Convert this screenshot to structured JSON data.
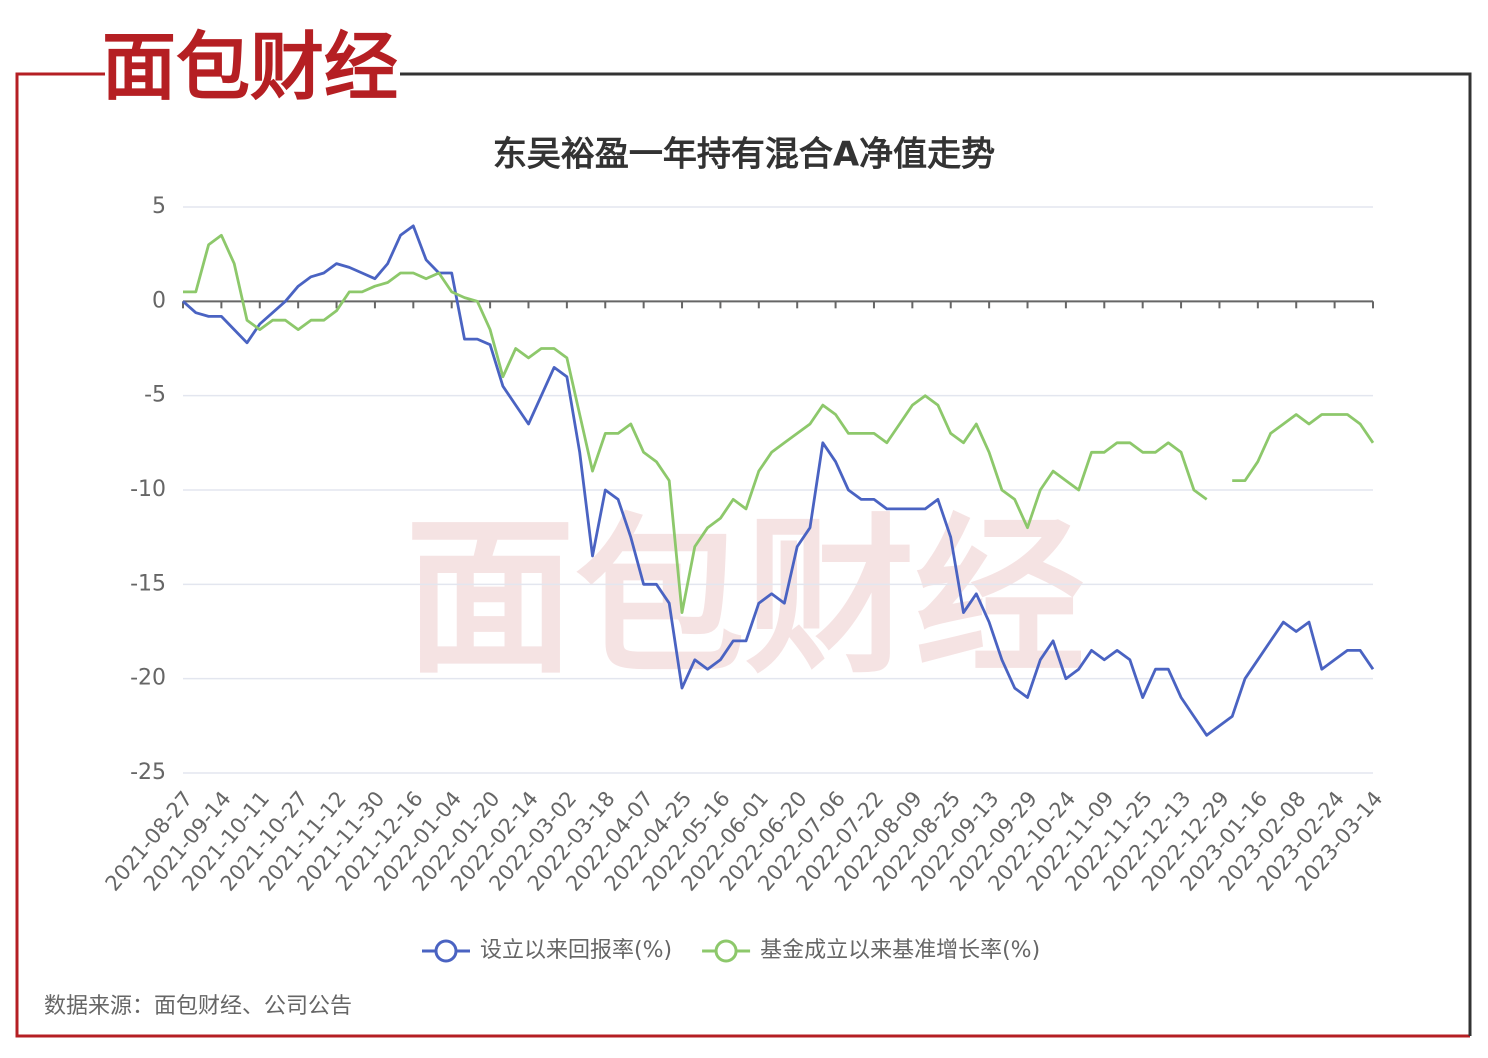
{
  "logo": "面包财经",
  "source": "数据来源：面包财经、公司公告",
  "chart_data": {
    "type": "line",
    "title": "东吴裕盈一年持有混合A净值走势",
    "categories": [
      "2021-08-27",
      null,
      null,
      "2021-09-14",
      null,
      null,
      "2021-10-11",
      null,
      null,
      "2021-10-27",
      null,
      null,
      "2021-11-12",
      null,
      null,
      "2021-11-30",
      null,
      null,
      "2021-12-16",
      null,
      null,
      "2022-01-04",
      null,
      null,
      "2022-01-20",
      null,
      null,
      "2022-02-14",
      null,
      null,
      "2022-03-02",
      null,
      null,
      "2022-03-18",
      null,
      null,
      "2022-04-07",
      null,
      null,
      "2022-04-25",
      null,
      null,
      "2022-05-16",
      null,
      null,
      "2022-06-01",
      null,
      null,
      "2022-06-20",
      null,
      null,
      "2022-07-06",
      null,
      null,
      "2022-07-22",
      null,
      null,
      "2022-08-09",
      null,
      null,
      "2022-08-25",
      null,
      null,
      "2022-09-13",
      null,
      null,
      "2022-09-29",
      null,
      null,
      "2022-10-24",
      null,
      null,
      "2022-11-09",
      null,
      null,
      "2022-11-25",
      null,
      null,
      "2022-12-13",
      null,
      null,
      "2022-12-29",
      null,
      null,
      "2023-01-16",
      null,
      null,
      "2023-02-08",
      null,
      null,
      "2023-02-24",
      null,
      null,
      "2023-03-14"
    ],
    "series": [
      {
        "name": "设立以来回报率(%)",
        "color": "#4a63c2",
        "values": [
          0,
          -0.6,
          -0.8,
          -0.8,
          -1.5,
          -2.2,
          -1.2,
          -0.6,
          0,
          0.8,
          1.3,
          1.5,
          2,
          1.8,
          1.5,
          1.2,
          2,
          3.5,
          4,
          2.2,
          1.5,
          1.5,
          -2,
          -2,
          -2.3,
          -4.5,
          -5.5,
          -6.5,
          -5,
          -3.5,
          -4,
          -8,
          -13.5,
          -10,
          -10.5,
          -12.5,
          -15,
          -15,
          -16,
          -20.5,
          -19,
          -19.5,
          -19,
          -18,
          -18,
          -16,
          -15.5,
          -16,
          -13,
          -12,
          -7.5,
          -8.5,
          -10,
          -10.5,
          -10.5,
          -11,
          -11,
          -11,
          -11,
          -10.5,
          -12.5,
          -16.5,
          -15.5,
          -17,
          -19,
          -20.5,
          -21,
          -19,
          -18,
          -20,
          -19.5,
          -18.5,
          -19,
          -18.5,
          -19,
          -21,
          -19.5,
          -19.5,
          -21,
          -22,
          -23,
          -22.5,
          -22,
          -20,
          -19,
          -18,
          -17,
          -17.5,
          -17,
          -19.5,
          -19,
          -18.5,
          -18.5,
          -19.5
        ]
      },
      {
        "name": "基金成立以来基准增长率(%)",
        "color": "#8dc86b",
        "values": [
          0.5,
          0.5,
          3,
          3.5,
          2,
          -1,
          -1.5,
          -1,
          -1,
          -1.5,
          -1,
          -1,
          -0.5,
          0.5,
          0.5,
          0.8,
          1,
          1.5,
          1.5,
          1.2,
          1.5,
          0.5,
          0.2,
          0,
          -1.5,
          -4,
          -2.5,
          -3,
          -2.5,
          -2.5,
          -3,
          -6,
          -9,
          -7,
          -7,
          -6.5,
          -8,
          -8.5,
          -9.5,
          -16.5,
          -13,
          -12,
          -11.5,
          -10.5,
          -11,
          -9,
          -8,
          -7.5,
          -7,
          -6.5,
          -5.5,
          -6,
          -7,
          -7,
          -7,
          -7.5,
          -6.5,
          -5.5,
          -5,
          -5.5,
          -7,
          -7.5,
          -6.5,
          -8,
          -10,
          -10.5,
          -12,
          -10,
          -9,
          -9.5,
          -10,
          -8,
          -8,
          -7.5,
          -7.5,
          -8,
          -8,
          -7.5,
          -8,
          -10,
          -10.5,
          null,
          -9.5,
          -9.5,
          -8.5,
          -7,
          -6.5,
          -6,
          -6.5,
          -6,
          -6,
          -6,
          -6.5,
          -7.5
        ]
      }
    ],
    "ylim": [
      -25,
      5
    ],
    "yticks": [
      5,
      0,
      -5,
      -10,
      -15,
      -20,
      -25
    ],
    "grid": true
  }
}
